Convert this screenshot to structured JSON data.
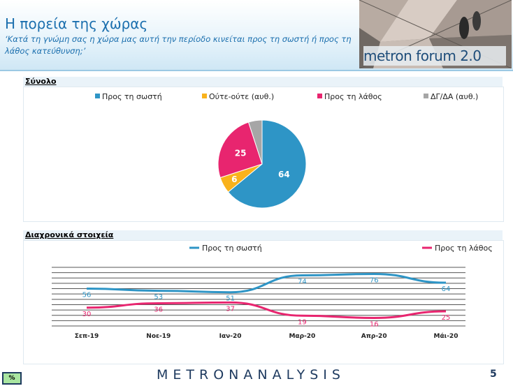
{
  "header": {
    "title": "Η πορεία της χώρας",
    "subtitle": "‘Κατά τη γνώμη σας η χώρα μας αυτή την περίοδο κινείται προς τη σωστή ή προς τη λάθος κατεύθυνση;’",
    "banner_text": "metron forum 2.0"
  },
  "sections": {
    "total_label": "Σύνολο",
    "trend_label": "Διαχρονικά στοιχεία"
  },
  "footer": {
    "logo": "METRONANALYSIS",
    "page_number": "5",
    "percent_badge": "%"
  },
  "colors": {
    "right": "#2e95c6",
    "neutral": "#f9b21c",
    "wrong": "#e8256f",
    "dk": "#a6a6a6"
  },
  "chart_data": [
    {
      "type": "pie",
      "title": "",
      "categories": [
        "Προς τη σωστή",
        "Ούτε-ούτε (αυθ.)",
        "Προς τη λάθος",
        "ΔΓ/ΔΑ (αυθ.)"
      ],
      "values": [
        64,
        6,
        25,
        5
      ],
      "labels": [
        "64",
        "6",
        "25",
        ""
      ],
      "colors": [
        "#2e95c6",
        "#f9b21c",
        "#e8256f",
        "#a6a6a6"
      ],
      "legend": "top"
    },
    {
      "type": "line",
      "title": "",
      "x": [
        "Σεπ-19",
        "Νοε-19",
        "Ιαν-20",
        "Μαρ-20",
        "Απρ-20",
        "Μάι-20"
      ],
      "series": [
        {
          "name": "Προς τη σωστή",
          "values": [
            56,
            53,
            51,
            74,
            76,
            64
          ],
          "color": "#2e95c6"
        },
        {
          "name": "Προς τη λάθος",
          "values": [
            30,
            36,
            37,
            19,
            16,
            25
          ],
          "color": "#e8256f"
        }
      ],
      "ylim": [
        5,
        85
      ],
      "grid": true,
      "legend": "top"
    }
  ]
}
